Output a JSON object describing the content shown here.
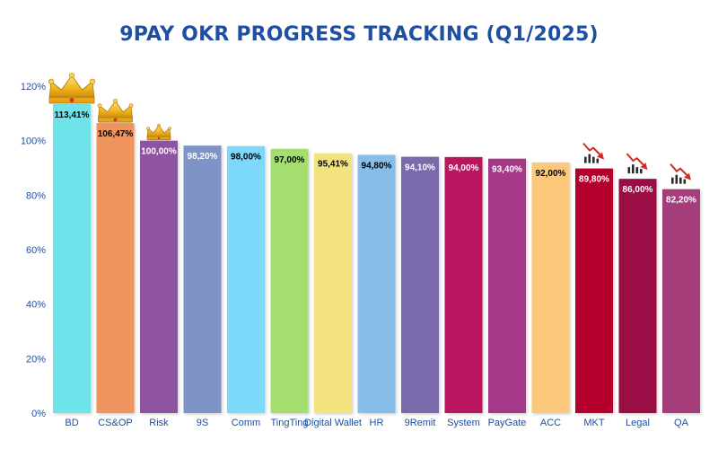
{
  "chart_data": {
    "type": "bar",
    "title": "9PAY OKR PROGRESS TRACKING (Q1/2025)",
    "xlabel": "",
    "ylabel": "",
    "ylim": [
      0,
      120
    ],
    "y_ticks": [
      "0%",
      "20%",
      "40%",
      "60%",
      "80%",
      "100%",
      "120%"
    ],
    "y_tick_values": [
      0,
      20,
      40,
      60,
      80,
      100,
      120
    ],
    "grid": false,
    "categories": [
      "BD",
      "CS&OP",
      "Risk",
      "9S",
      "Comm",
      "TingTing",
      "Digital Wallet",
      "HR",
      "9Remit",
      "System",
      "PayGate",
      "ACC",
      "MKT",
      "Legal",
      "QA"
    ],
    "values": [
      113.41,
      106.47,
      100.0,
      98.2,
      98.0,
      97.0,
      95.41,
      94.8,
      94.1,
      94.0,
      93.4,
      92.0,
      89.8,
      86.0,
      82.2
    ],
    "data_labels": [
      "113,41%",
      "106,47%",
      "100,00%",
      "98,20%",
      "98,00%",
      "97,00%",
      "95,41%",
      "94,80%",
      "94,10%",
      "94,00%",
      "93,40%",
      "92,00%",
      "89,80%",
      "86,00%",
      "82,20%"
    ],
    "colors": [
      "#6ee4ea",
      "#f0945f",
      "#8e52a1",
      "#7e93c6",
      "#7cd9f9",
      "#a3de6e",
      "#f2e37f",
      "#86bde9",
      "#7a6aab",
      "#b8135e",
      "#a63788",
      "#fcc97c",
      "#b5022e",
      "#9b0a45",
      "#a53c7a"
    ],
    "label_colors": [
      "#000000",
      "#000000",
      "#ffffff",
      "#ffffff",
      "#000000",
      "#000000",
      "#000000",
      "#000000",
      "#ffffff",
      "#ffffff",
      "#ffffff",
      "#000000",
      "#ffffff",
      "#ffffff",
      "#ffffff"
    ],
    "annotations": [
      {
        "category": "BD",
        "icon": "crown-icon"
      },
      {
        "category": "CS&OP",
        "icon": "crown-icon"
      },
      {
        "category": "Risk",
        "icon": "crown-icon"
      },
      {
        "category": "MKT",
        "icon": "trend-down-icon"
      },
      {
        "category": "Legal",
        "icon": "trend-down-icon"
      },
      {
        "category": "QA",
        "icon": "trend-down-icon"
      }
    ]
  }
}
